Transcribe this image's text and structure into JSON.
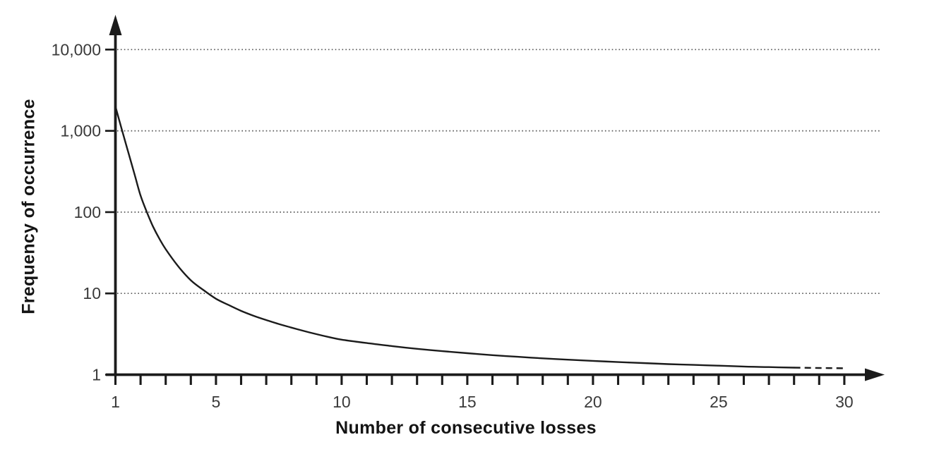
{
  "figure": {
    "background": "#ffffff",
    "ink_color": "#1b1b1b",
    "tick_label_color": "#3a3a3a",
    "gridline_color": "#555555"
  },
  "chart_data": {
    "type": "line",
    "title": "",
    "xlabel": "Number of consecutive losses",
    "ylabel": "Frequency of occurrence",
    "x_scale": "linear",
    "y_scale": "log10",
    "xlim": [
      1,
      31.5
    ],
    "ylim": [
      1,
      20000
    ],
    "grid": "horizontal dotted lines at each decade",
    "legend": "none",
    "x_major_tick_values": [
      1,
      5,
      10,
      15,
      20,
      25,
      30
    ],
    "x_major_tick_labels": [
      "1",
      "5",
      "10",
      "15",
      "20",
      "25",
      "30"
    ],
    "x_minor_ticks": {
      "from": 1,
      "to": 30,
      "step": 1
    },
    "y_tick_values": [
      1,
      10,
      100,
      1000,
      10000
    ],
    "y_tick_labels": [
      "1",
      "10",
      "100",
      "1,000",
      "10,000"
    ],
    "gridline_values": [
      10,
      100,
      1000,
      10000
    ],
    "axis_arrows": [
      "x-end",
      "y-end"
    ],
    "series": [
      {
        "name": "frequency-of-consecutive-losses",
        "color": "#1b1b1b",
        "style": "solid with dashed tail",
        "dashed_tail_start_x": 28,
        "points": [
          [
            1,
            2000
          ],
          [
            1.25,
            1050
          ],
          [
            1.5,
            560
          ],
          [
            1.75,
            300
          ],
          [
            2,
            160
          ],
          [
            2.25,
            100
          ],
          [
            2.5,
            66
          ],
          [
            2.75,
            47
          ],
          [
            3,
            35
          ],
          [
            3.5,
            21.5
          ],
          [
            4,
            14.5
          ],
          [
            4.5,
            11
          ],
          [
            5,
            8.6
          ],
          [
            5.5,
            7.2
          ],
          [
            6,
            6.1
          ],
          [
            6.5,
            5.3
          ],
          [
            7,
            4.7
          ],
          [
            7.5,
            4.2
          ],
          [
            8,
            3.8
          ],
          [
            8.5,
            3.45
          ],
          [
            9,
            3.15
          ],
          [
            9.5,
            2.9
          ],
          [
            10,
            2.7
          ],
          [
            11,
            2.45
          ],
          [
            12,
            2.25
          ],
          [
            13,
            2.08
          ],
          [
            14,
            1.95
          ],
          [
            15,
            1.84
          ],
          [
            16,
            1.74
          ],
          [
            17,
            1.66
          ],
          [
            18,
            1.59
          ],
          [
            19,
            1.53
          ],
          [
            20,
            1.48
          ],
          [
            21,
            1.43
          ],
          [
            22,
            1.39
          ],
          [
            23,
            1.35
          ],
          [
            24,
            1.32
          ],
          [
            25,
            1.29
          ],
          [
            26,
            1.26
          ],
          [
            27,
            1.24
          ],
          [
            28,
            1.22
          ],
          [
            29,
            1.21
          ],
          [
            30,
            1.2
          ]
        ]
      }
    ]
  }
}
